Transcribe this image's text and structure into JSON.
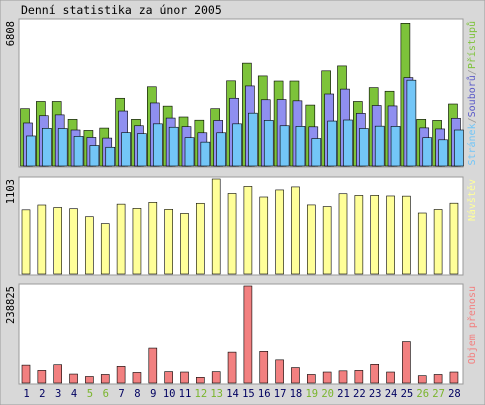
{
  "chart_data": {
    "type": "bar",
    "title": "Denní statistika za únor 2005",
    "categories": [
      "1",
      "2",
      "3",
      "4",
      "5",
      "6",
      "7",
      "8",
      "9",
      "10",
      "11",
      "12",
      "13",
      "14",
      "15",
      "16",
      "17",
      "18",
      "19",
      "20",
      "21",
      "22",
      "23",
      "24",
      "25",
      "26",
      "27",
      "28"
    ],
    "weekend_days": [
      "5",
      "6",
      "12",
      "13",
      "19",
      "20",
      "26",
      "27"
    ],
    "colors": {
      "hits": "#7dc33a",
      "files": "#8f8ff0",
      "pages": "#73c6f7",
      "visits": "#ffff99",
      "volume": "#f28080",
      "weekday_label": "#000060",
      "weekend_label": "#7ab52c",
      "legend_files": "#5b5bc8",
      "border": "#9a9a9a",
      "title_bg": "#ffffff",
      "frame_bg": "#ffffff"
    },
    "panels": [
      {
        "id": "traffic",
        "max_label": "6808",
        "ylim": [
          0,
          6808
        ],
        "legend": [
          {
            "text": "Stránek",
            "color_key": "pages"
          },
          {
            "text": "/",
            "color_key": "border"
          },
          {
            "text": "Souborů",
            "color_key": "legend_files"
          },
          {
            "text": "/",
            "color_key": "border"
          },
          {
            "text": "Přístupů",
            "color_key": "hits"
          }
        ],
        "series": [
          {
            "name": "Přístupů",
            "color_key": "hits",
            "values": [
              2690,
              3030,
              3030,
              2190,
              1670,
              1780,
              3180,
              2190,
              3720,
              2810,
              2300,
              2150,
              2690,
              4000,
              4830,
              4230,
              3990,
              3990,
              2860,
              4470,
              4700,
              3030,
              3680,
              3510,
              6700,
              2190,
              2140,
              2910
            ]
          },
          {
            "name": "Souborů",
            "color_key": "files",
            "values": [
              2020,
              2360,
              2400,
              1690,
              1340,
              1310,
              2580,
              1890,
              2960,
              2250,
              1850,
              1560,
              2140,
              3180,
              3760,
              3110,
              3120,
              3060,
              1840,
              3380,
              3610,
              2470,
              2840,
              2820,
              4150,
              1790,
              1740,
              2240
            ]
          },
          {
            "name": "Stránek",
            "color_key": "pages",
            "values": [
              1410,
              1770,
              1760,
              1390,
              960,
              880,
              1570,
              1520,
              1980,
              1820,
              1330,
              1120,
              1560,
              1980,
              2480,
              2140,
              1890,
              1860,
              1290,
              2110,
              2160,
              1760,
              1870,
              1860,
              4030,
              1330,
              1230,
              1690
            ]
          }
        ]
      },
      {
        "id": "visits",
        "max_label": "1103",
        "ylim": [
          0,
          1103
        ],
        "legend": [
          {
            "text": "Návštěv",
            "color_key": "visits"
          }
        ],
        "series": [
          {
            "name": "Návštěv",
            "color_key": "visits",
            "values": [
              745,
              801,
              772,
              758,
              665,
              585,
              811,
              762,
              832,
              751,
              703,
              821,
              1103,
              935,
              1017,
              894,
              976,
              1011,
              802,
              783,
              932,
              912,
              913,
              906,
              904,
              708,
              749,
              822
            ]
          }
        ]
      },
      {
        "id": "volume",
        "max_label": "238825",
        "ylim": [
          0,
          238825
        ],
        "legend": [
          {
            "text": "Objem přenosu",
            "color_key": "volume"
          }
        ],
        "series": [
          {
            "name": "Objem přenosu",
            "color_key": "volume",
            "values": [
              44000,
              31000,
              45000,
              22000,
              16000,
              21000,
              41000,
              26000,
              86000,
              28000,
              27000,
              14000,
              28000,
              76000,
              238825,
              78000,
              57000,
              38000,
              21000,
              27000,
              30000,
              31000,
              46000,
              27000,
              102000,
              18000,
              21000,
              27000
            ]
          }
        ]
      }
    ]
  }
}
